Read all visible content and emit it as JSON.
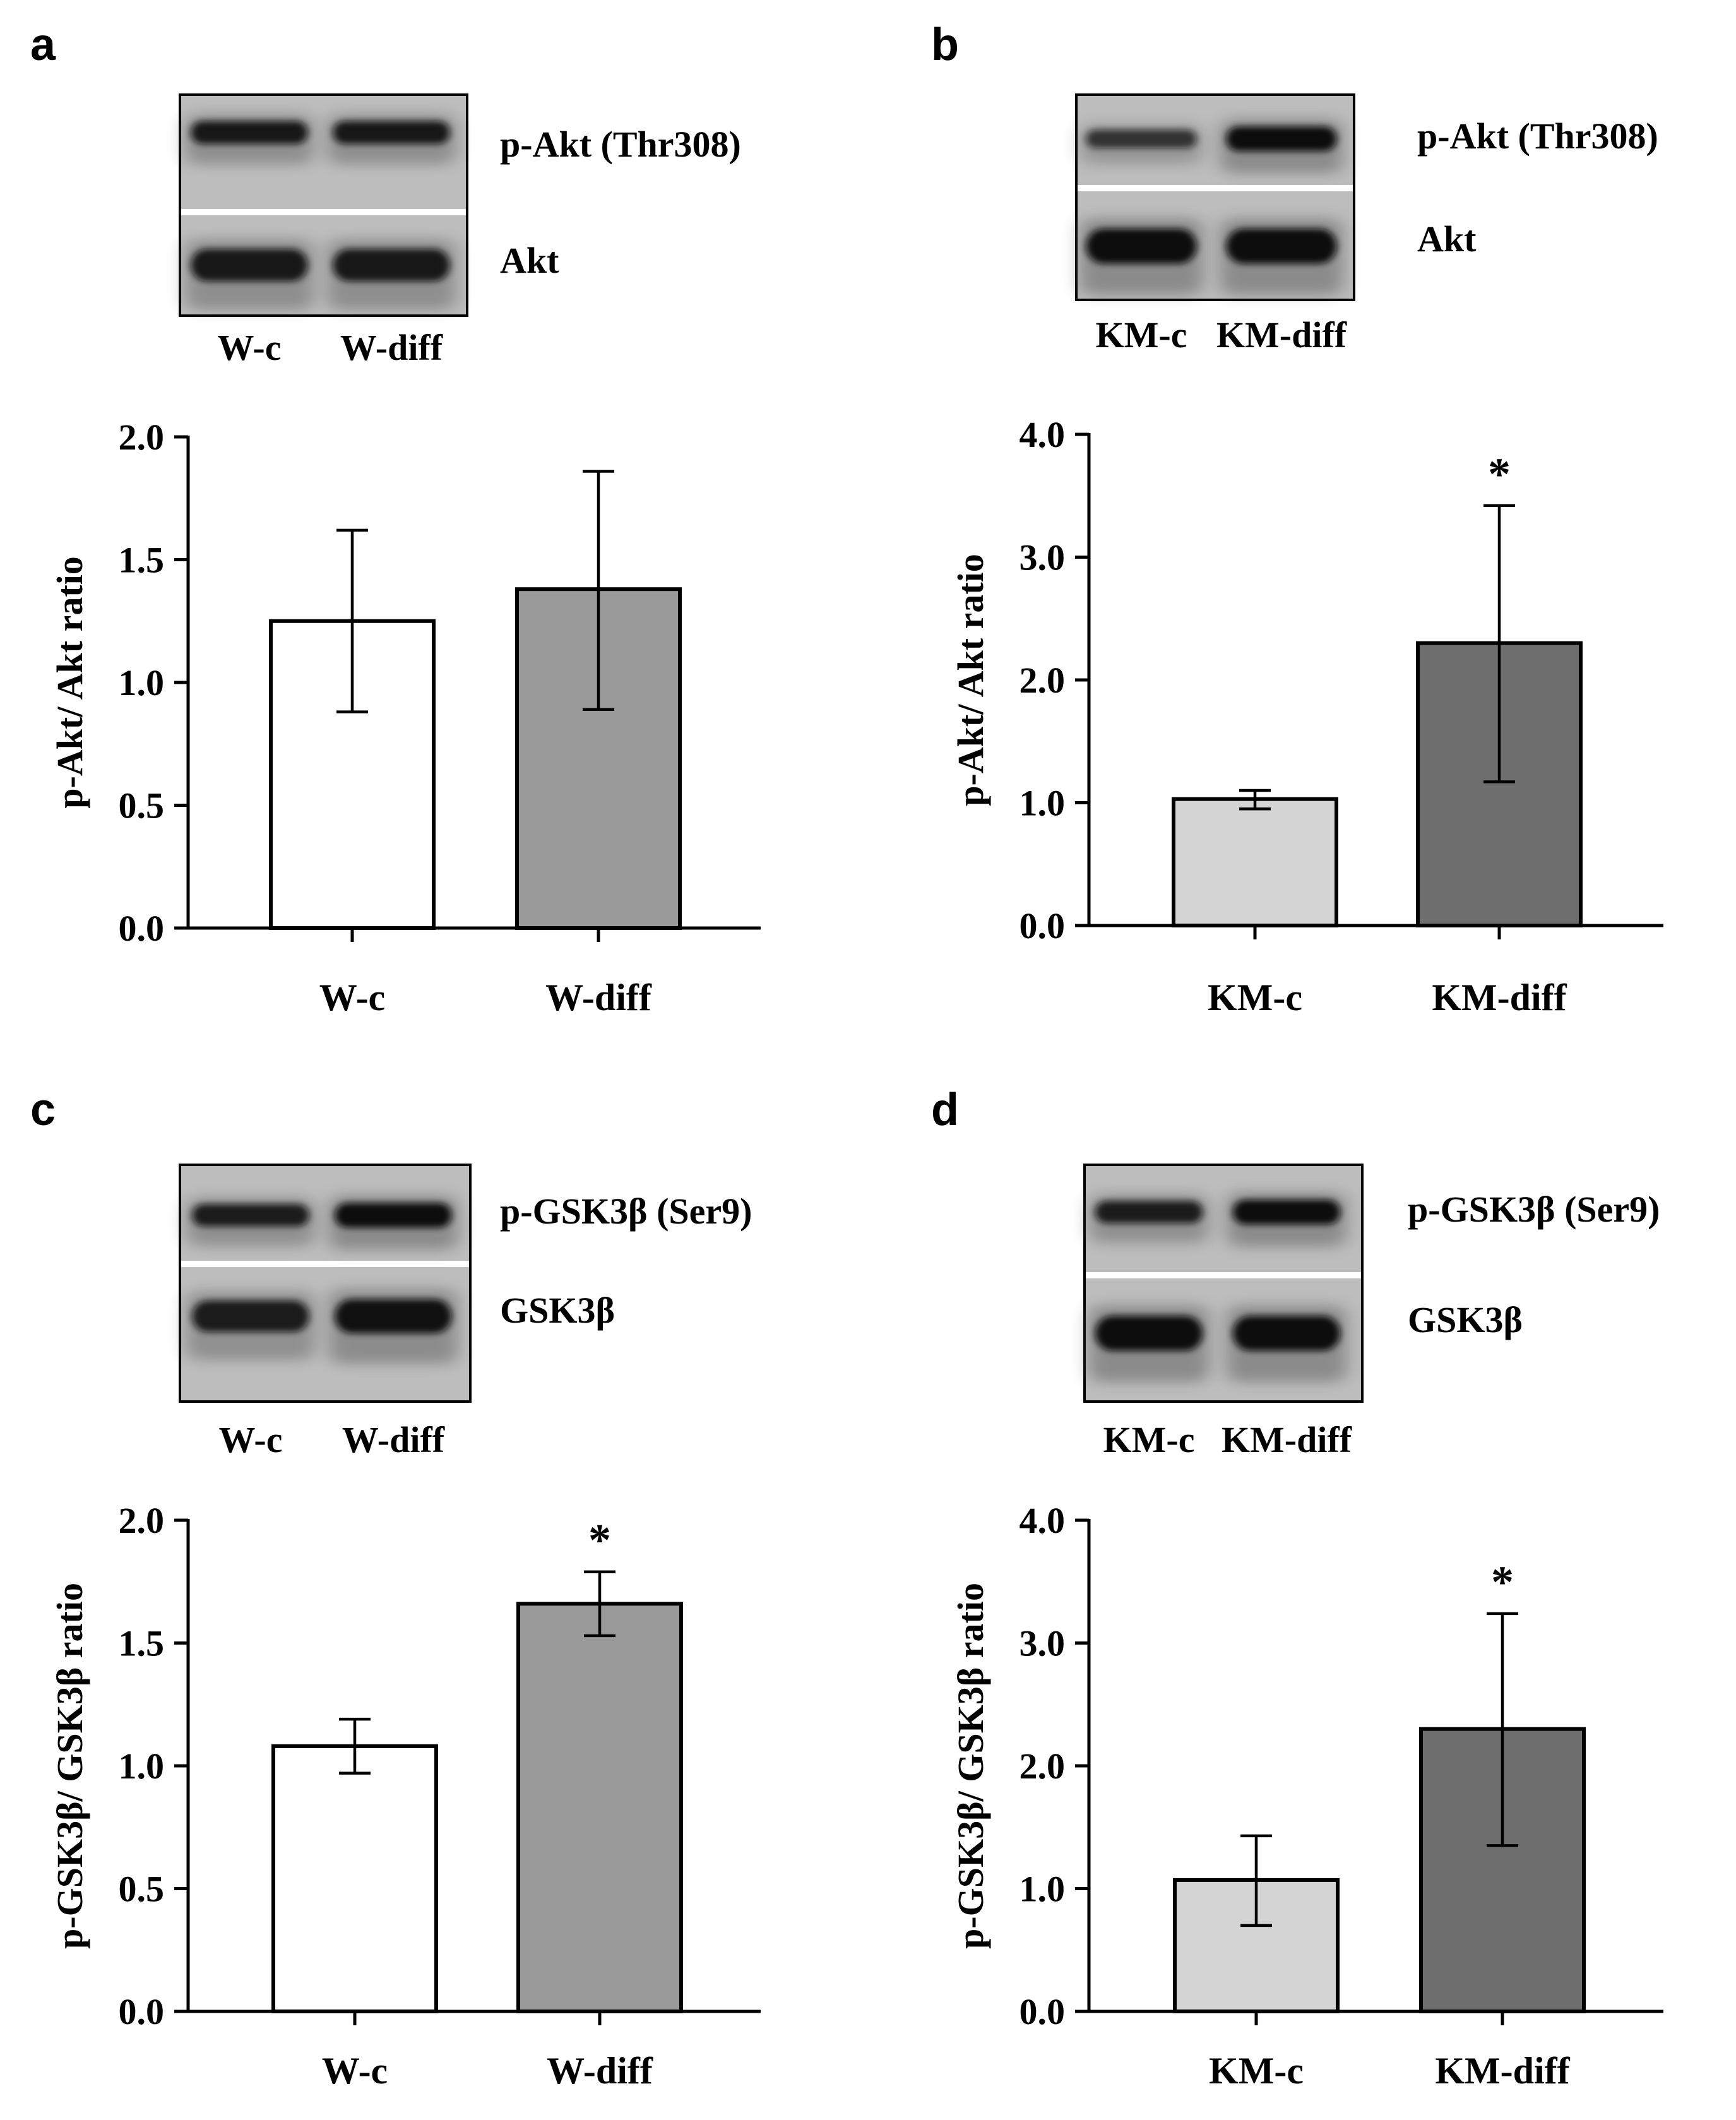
{
  "figure": {
    "panels": [
      {
        "letter": "a",
        "blot": {
          "top_label": "p-Akt (Thr308)",
          "bottom_label": "Akt",
          "lane_labels": [
            "W-c",
            "W-diff"
          ],
          "top_intensity": [
            0.85,
            0.85
          ],
          "bottom_intensity": [
            0.85,
            0.85
          ]
        }
      },
      {
        "letter": "b",
        "blot": {
          "top_label": "p-Akt (Thr308)",
          "bottom_label": "Akt",
          "lane_labels": [
            "KM-c",
            "KM-diff"
          ],
          "top_intensity": [
            0.5,
            1.0
          ],
          "bottom_intensity": [
            1.0,
            1.0
          ]
        }
      },
      {
        "letter": "c",
        "blot": {
          "top_label": "p-GSK3β (Ser9)",
          "bottom_label": "GSK3β",
          "lane_labels": [
            "W-c",
            "W-diff"
          ],
          "top_intensity": [
            0.8,
            1.0
          ],
          "bottom_intensity": [
            0.8,
            0.95
          ]
        }
      },
      {
        "letter": "d",
        "blot": {
          "top_label": "p-GSK3β (Ser9)",
          "bottom_label": "GSK3β",
          "lane_labels": [
            "KM-c",
            "KM-diff"
          ],
          "top_intensity": [
            0.8,
            1.0
          ],
          "bottom_intensity": [
            1.0,
            1.0
          ]
        }
      }
    ],
    "colors": {
      "white_bar": "#ffffff",
      "grey_bar": "#9a9a9a",
      "light_grey_bar": "#d4d4d4",
      "dark_grey_bar": "#6e6e6e",
      "axis": "#000000"
    }
  },
  "chart_data": [
    {
      "type": "bar",
      "panel": "a",
      "title": "",
      "xlabel": "",
      "ylabel": "p-Akt/ Akt ratio",
      "categories": [
        "W-c",
        "W-diff"
      ],
      "values": [
        1.25,
        1.38
      ],
      "errors": [
        [
          0.88,
          1.62
        ],
        [
          0.89,
          1.86
        ]
      ],
      "bar_colors": [
        "#ffffff",
        "#9a9a9a"
      ],
      "significance": [
        "",
        ""
      ],
      "ylim": [
        0,
        2.0
      ],
      "yticks": [
        0.0,
        0.5,
        1.0,
        1.5,
        2.0
      ],
      "ytick_labels": [
        "0.0",
        "0.5",
        "1.0",
        "1.5",
        "2.0"
      ]
    },
    {
      "type": "bar",
      "panel": "b",
      "title": "",
      "xlabel": "",
      "ylabel": "p-Akt/ Akt ratio",
      "categories": [
        "KM-c",
        "KM-diff"
      ],
      "values": [
        1.03,
        2.3
      ],
      "errors": [
        [
          0.95,
          1.1
        ],
        [
          1.17,
          3.42
        ]
      ],
      "bar_colors": [
        "#d4d4d4",
        "#6e6e6e"
      ],
      "significance": [
        "",
        "*"
      ],
      "ylim": [
        0,
        4.0
      ],
      "yticks": [
        0.0,
        1.0,
        2.0,
        3.0,
        4.0
      ],
      "ytick_labels": [
        "0.0",
        "1.0",
        "2.0",
        "3.0",
        "4.0"
      ]
    },
    {
      "type": "bar",
      "panel": "c",
      "title": "",
      "xlabel": "",
      "ylabel": "p-GSK3β/ GSK3β ratio",
      "categories": [
        "W-c",
        "W-diff"
      ],
      "values": [
        1.08,
        1.66
      ],
      "errors": [
        [
          0.97,
          1.19
        ],
        [
          1.53,
          1.79
        ]
      ],
      "bar_colors": [
        "#ffffff",
        "#9a9a9a"
      ],
      "significance": [
        "",
        "*"
      ],
      "ylim": [
        0,
        2.0
      ],
      "yticks": [
        0.0,
        0.5,
        1.0,
        1.5,
        2.0
      ],
      "ytick_labels": [
        "0.0",
        "0.5",
        "1.0",
        "1.5",
        "2.0"
      ]
    },
    {
      "type": "bar",
      "panel": "d",
      "title": "",
      "xlabel": "",
      "ylabel": "p-GSK3β/ GSK3β ratio",
      "categories": [
        "KM-c",
        "KM-diff"
      ],
      "values": [
        1.07,
        2.3
      ],
      "errors": [
        [
          0.7,
          1.43
        ],
        [
          1.35,
          3.24
        ]
      ],
      "bar_colors": [
        "#d4d4d4",
        "#6e6e6e"
      ],
      "significance": [
        "",
        "*"
      ],
      "ylim": [
        0,
        4.0
      ],
      "yticks": [
        0.0,
        1.0,
        2.0,
        3.0,
        4.0
      ],
      "ytick_labels": [
        "0.0",
        "1.0",
        "2.0",
        "3.0",
        "4.0"
      ]
    }
  ]
}
